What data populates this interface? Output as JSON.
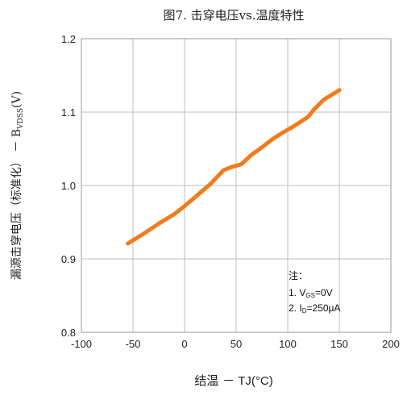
{
  "chart_data": {
    "type": "line",
    "title": "图7. 击穿电压vs.温度特性",
    "xlabel": {
      "prefix": "结温 ",
      "main": "－ TJ(°C)"
    },
    "ylabel": {
      "main": "漏源击穿电压（标准化） － B",
      "sub": "VDSS",
      "suffix": "(V)"
    },
    "xlim": [
      -100,
      200
    ],
    "ylim": [
      0.8,
      1.2
    ],
    "xticks": [
      -100,
      -50,
      0,
      50,
      100,
      150,
      200
    ],
    "yticks": [
      0.8,
      0.9,
      1.0,
      1.1,
      1.2
    ],
    "xtick_labels": [
      "-100",
      "-50",
      "0",
      "50",
      "100",
      "150",
      "200"
    ],
    "ytick_labels": [
      "0.8",
      "0.9",
      "1.0",
      "1.1",
      "1.2"
    ],
    "grid": true,
    "series": [
      {
        "color": "#f07c1e",
        "x": [
          -55,
          -40,
          -25,
          -10,
          0,
          10,
          25,
          38,
          45,
          55,
          65,
          75,
          85,
          95,
          105,
          115,
          120,
          125,
          135,
          150
        ],
        "y": [
          0.921,
          0.934,
          0.948,
          0.961,
          0.972,
          0.984,
          1.002,
          1.021,
          1.025,
          1.029,
          1.042,
          1.052,
          1.063,
          1.072,
          1.08,
          1.089,
          1.094,
          1.103,
          1.117,
          1.13
        ]
      }
    ],
    "annotation": {
      "heading": "注：",
      "lines": [
        {
          "pre": "1. V",
          "sub": "GS",
          "post": "=0V"
        },
        {
          "pre": "2. I",
          "sub": "D",
          "post": "=250μA"
        }
      ]
    }
  }
}
